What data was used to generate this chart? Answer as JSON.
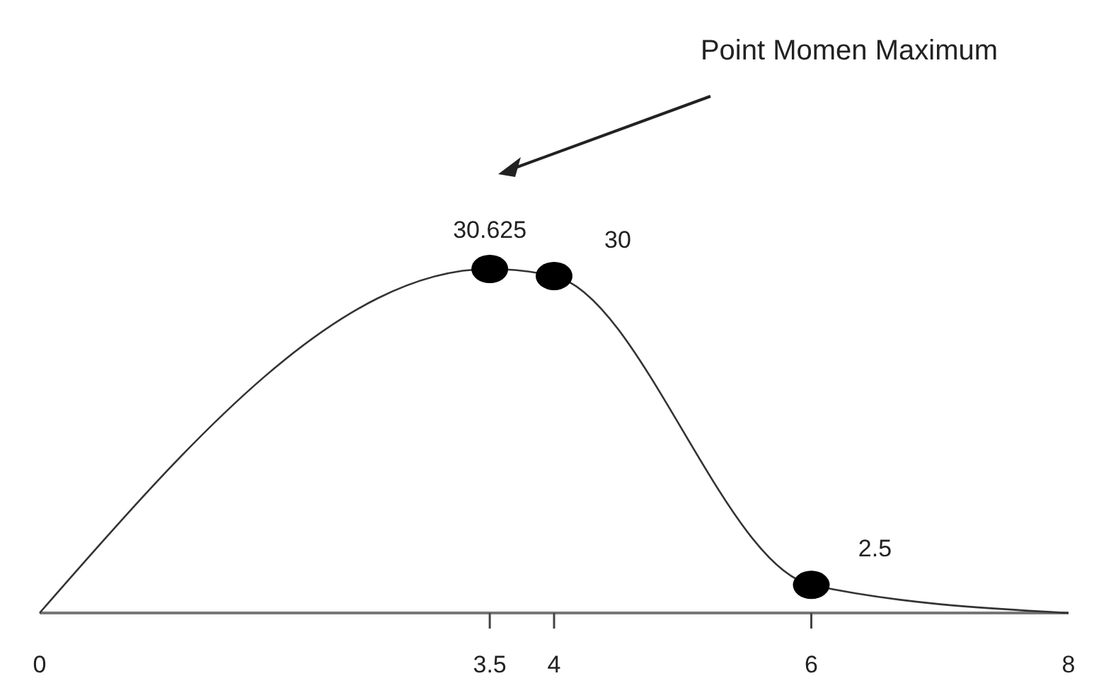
{
  "chart_data": {
    "type": "line",
    "xlim": [
      0,
      8
    ],
    "xticks": [
      0,
      3.5,
      4,
      6,
      8
    ],
    "tick_labels": "x",
    "series": [
      {
        "color": "#333333",
        "x": [
          0,
          3.5,
          4,
          6,
          8
        ],
        "values": [
          0,
          30.625,
          30,
          2.5,
          0
        ],
        "marker": "none"
      },
      {
        "type": "scatter",
        "color": "#000000",
        "x": [
          3.5,
          4,
          6
        ],
        "values": [
          30.625,
          30,
          2.5
        ],
        "marker": "circle",
        "data_labels": true
      }
    ],
    "annotations": [
      "Point Momen Maximum"
    ]
  }
}
